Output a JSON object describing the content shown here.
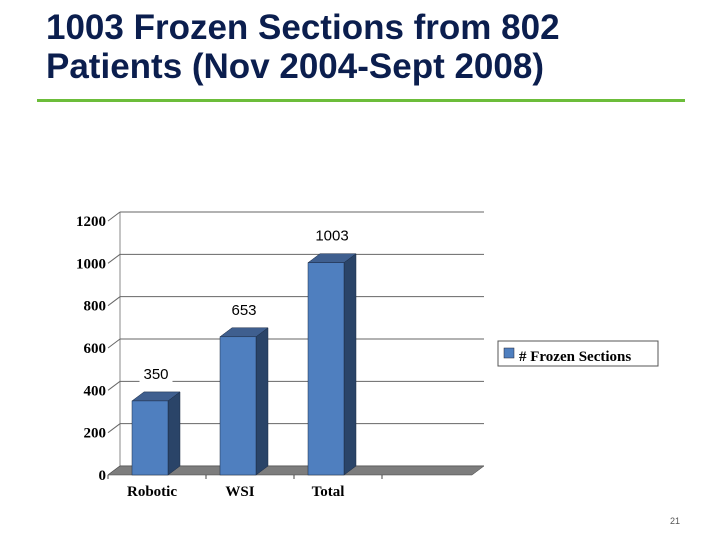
{
  "slide": {
    "title_line1": "1003 Frozen Sections from 802",
    "title_line2": "Patients (Nov 2004-Sept 2008)",
    "slide_number": "21",
    "accent_color": "#6cbd3a",
    "title_color": "#0b1e4e"
  },
  "chart_data": {
    "type": "bar",
    "categories": [
      "Robotic",
      "WSI",
      "Total"
    ],
    "series": [
      {
        "name": "# Frozen Sections",
        "values": [
          350,
          653,
          1003
        ],
        "color": "#4f7fbf"
      }
    ],
    "data_labels": [
      "350",
      "653",
      "1003"
    ],
    "y_ticks": [
      "0",
      "200",
      "400",
      "600",
      "800",
      "1000",
      "1200"
    ],
    "ylim": [
      0,
      1200
    ],
    "grid": true,
    "legend_position": "right",
    "style": "3d"
  }
}
